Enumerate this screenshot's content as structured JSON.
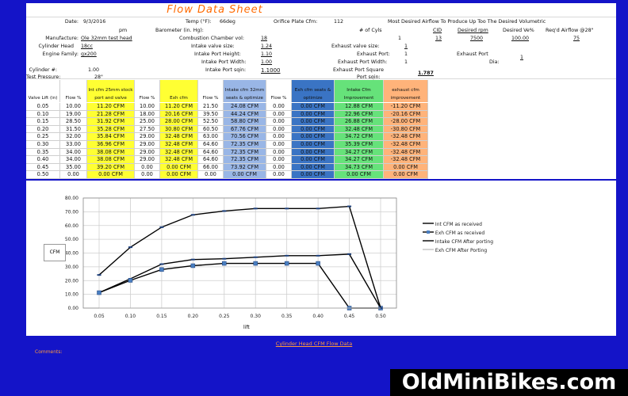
{
  "sheet_title": "Flow Data Sheet",
  "header": {
    "date_label": "Date:",
    "date": "9/3/2016",
    "temp_label": "Temp (°F):",
    "temp": "66deg",
    "orifice_label": "Orifice Plate Cfm:",
    "orifice": "112",
    "desired_airflow_label": "Most Desired Airflow To Produce Up Too The Desired Volumetric",
    "pm": "pm",
    "barometer_label": "Barometer (in. Hg):",
    "num_cyls_label": "# of Cyls",
    "cid_label": "CID",
    "rpm_label": "Desired rpm",
    "ve_label": "Desired Ve%",
    "reqd_label": "Req'd Airflow @28\"",
    "manufacturer_label": "Manufacture:",
    "manufacturer": "Ole 32mm test head",
    "chamber_label": "Combustion Chamber vol:",
    "chamber": "18",
    "num_cyls": "1",
    "cid": "13",
    "rpm": "7500",
    "ve": "100.00",
    "reqd": "75",
    "cyl_head_label": "Cylinder Head",
    "cyl_head": "18cc",
    "int_valve_label": "Intake valve size:",
    "int_valve": "1.24",
    "exh_valve_label": "Exhaust valve size:",
    "exh_valve": "1",
    "engine_family_label": "Engine Family:",
    "engine_family": "gx200",
    "int_port_h_label": "Intake Port Height:",
    "int_port_h": "1.10",
    "exh_port_label": "Exhaust Port:",
    "exh_port": "1",
    "exh_port2_label": "Exhaust Port",
    "dia_label": "Dia:",
    "dia": "1",
    "int_port_w_label": "Intake Port Width:",
    "int_port_w": "1.00",
    "exh_port_w_label": "Exhaust Port Width:",
    "exh_port_w": "1",
    "cyl_num_label": "Cylinder #:",
    "cyl_num": "1.00",
    "int_port_sq_label": "Intake Port sqin:",
    "int_port_sq": "1.1000",
    "exh_port_sq_label": "Exhaust Port Square",
    "exh_port_sq": "1.787",
    "port_sqin_label": "Port sqin:",
    "test_pressure_label": "Test Pressure:",
    "test_pressure": "28\""
  },
  "table": {
    "headers": [
      "Valve Lift (in)",
      "Flow %",
      "Int cfm 25mm stock port and valve",
      "Flow %",
      "Exh cfm",
      "Flow %",
      "Intake cfm 32mm seats & optimize",
      "Flow %",
      "Exh cfm seats & optimize",
      "Intake Cfm Improvement",
      "exhaust cfm improvement"
    ],
    "rows": [
      [
        "0.05",
        "10.00",
        "11.20 CFM",
        "10.00",
        "11.20 CFM",
        "21.50",
        "24.08 CFM",
        "0.00",
        "0.00 CFM",
        "12.88 CFM",
        "-11.20 CFM"
      ],
      [
        "0.10",
        "19.00",
        "21.28 CFM",
        "18.00",
        "20.16 CFM",
        "39.50",
        "44.24 CFM",
        "0.00",
        "0.00 CFM",
        "22.96 CFM",
        "-20.16 CFM"
      ],
      [
        "0.15",
        "28.50",
        "31.92 CFM",
        "25.00",
        "28.00 CFM",
        "52.50",
        "58.80 CFM",
        "0.00",
        "0.00 CFM",
        "26.88 CFM",
        "-28.00 CFM"
      ],
      [
        "0.20",
        "31.50",
        "35.28 CFM",
        "27.50",
        "30.80 CFM",
        "60.50",
        "67.76 CFM",
        "0.00",
        "0.00 CFM",
        "32.48 CFM",
        "-30.80 CFM"
      ],
      [
        "0.25",
        "32.00",
        "35.84 CFM",
        "29.00",
        "32.48 CFM",
        "63.00",
        "70.56 CFM",
        "0.00",
        "0.00 CFM",
        "34.72 CFM",
        "-32.48 CFM"
      ],
      [
        "0.30",
        "33.00",
        "36.96 CFM",
        "29.00",
        "32.48 CFM",
        "64.60",
        "72.35 CFM",
        "0.00",
        "0.00 CFM",
        "35.39 CFM",
        "-32.48 CFM"
      ],
      [
        "0.35",
        "34.00",
        "38.08 CFM",
        "29.00",
        "32.48 CFM",
        "64.60",
        "72.35 CFM",
        "0.00",
        "0.00 CFM",
        "34.27 CFM",
        "-32.48 CFM"
      ],
      [
        "0.40",
        "34.00",
        "38.08 CFM",
        "29.00",
        "32.48 CFM",
        "64.60",
        "72.35 CFM",
        "0.00",
        "0.00 CFM",
        "34.27 CFM",
        "-32.48 CFM"
      ],
      [
        "0.45",
        "35.00",
        "39.20 CFM",
        "0.00",
        "0.00 CFM",
        "66.00",
        "73.92 CFM",
        "0.00",
        "0.00 CFM",
        "34.73 CFM",
        "0.00 CFM"
      ],
      [
        "0.50",
        "0.00",
        "0.00 CFM",
        "0.00",
        "0.00 CFM",
        "0.00",
        "0.00 CFM",
        "0.00",
        "0.00 CFM",
        "0.00 CFM",
        "0.00 CFM"
      ]
    ],
    "colors": {
      "yellow": "#ffff33",
      "blue": "#99b6e6",
      "darkblue": "#3a74c4",
      "green": "#66e27a",
      "orange": "#ffb37a"
    }
  },
  "chart_data": {
    "type": "line",
    "x": [
      0.05,
      0.1,
      0.15,
      0.2,
      0.25,
      0.3,
      0.35,
      0.4,
      0.45,
      0.5
    ],
    "xlabel": "lift",
    "ylabel": "CFM",
    "ylim": [
      0,
      80
    ],
    "yticks": [
      "0.00",
      "10.00",
      "20.00",
      "30.00",
      "40.00",
      "50.00",
      "60.00",
      "70.00",
      "80.00"
    ],
    "xticks": [
      "0.05",
      "0.10",
      "0.15",
      "0.20",
      "0.25",
      "0.30",
      "0.35",
      "0.40",
      "0.45",
      "0.50"
    ],
    "grid": true,
    "legend_position": "right",
    "series": [
      {
        "name": "Int CFM as received",
        "values": [
          11.2,
          21.28,
          31.92,
          35.28,
          35.84,
          36.96,
          38.08,
          38.08,
          39.2,
          0.0
        ]
      },
      {
        "name": "Exh CFM as received",
        "values": [
          11.2,
          20.16,
          28.0,
          30.8,
          32.48,
          32.48,
          32.48,
          32.48,
          0.0,
          0.0
        ]
      },
      {
        "name": "Intake CFM After porting",
        "values": [
          24.08,
          44.24,
          58.8,
          67.76,
          70.56,
          72.35,
          72.35,
          72.35,
          73.92,
          0.0
        ]
      },
      {
        "name": "Exh CFM After Porting",
        "values": [
          0,
          0,
          0,
          0,
          0,
          0,
          0,
          0,
          0,
          0
        ]
      }
    ]
  },
  "caption": "Cylinder Head CFM Flow Data",
  "comments_label": "Comments:",
  "watermark": "OldMiniBikes.com"
}
